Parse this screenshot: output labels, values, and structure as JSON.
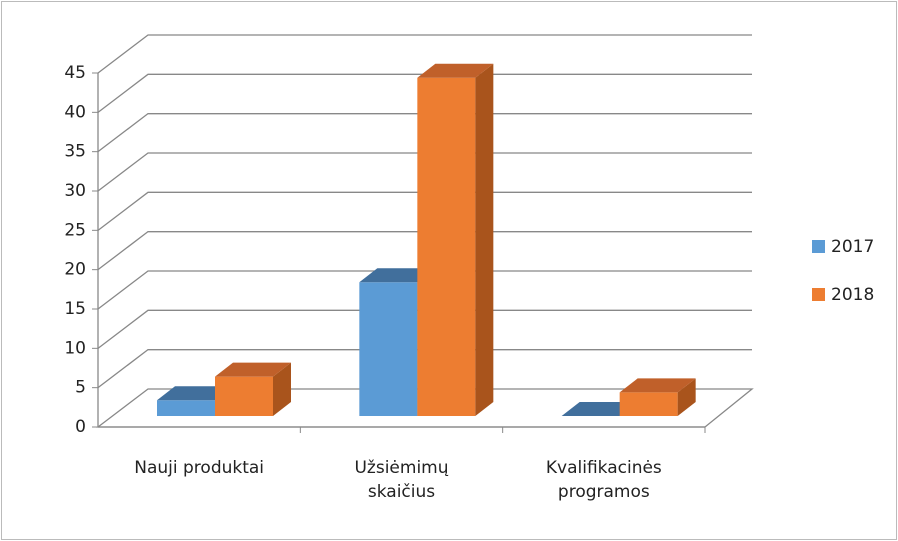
{
  "chart_data": {
    "type": "bar3d",
    "categories": [
      "Nauji produktai",
      "Užsiėmimų skaičius",
      "Kvalifikacinės programos"
    ],
    "series": [
      {
        "name": "2017",
        "color": "#5b9bd5",
        "side": "#3f71a0",
        "topc": "#416f9c",
        "values": [
          2,
          17,
          0
        ]
      },
      {
        "name": "2018",
        "color": "#ed7d31",
        "side": "#a9541c",
        "topc": "#c0602a",
        "values": [
          5,
          43,
          3
        ]
      }
    ],
    "ylim": [
      0,
      45
    ],
    "yticks": [
      0,
      5,
      10,
      15,
      20,
      25,
      30,
      35,
      40,
      45
    ],
    "grid": true,
    "legend": "right"
  }
}
